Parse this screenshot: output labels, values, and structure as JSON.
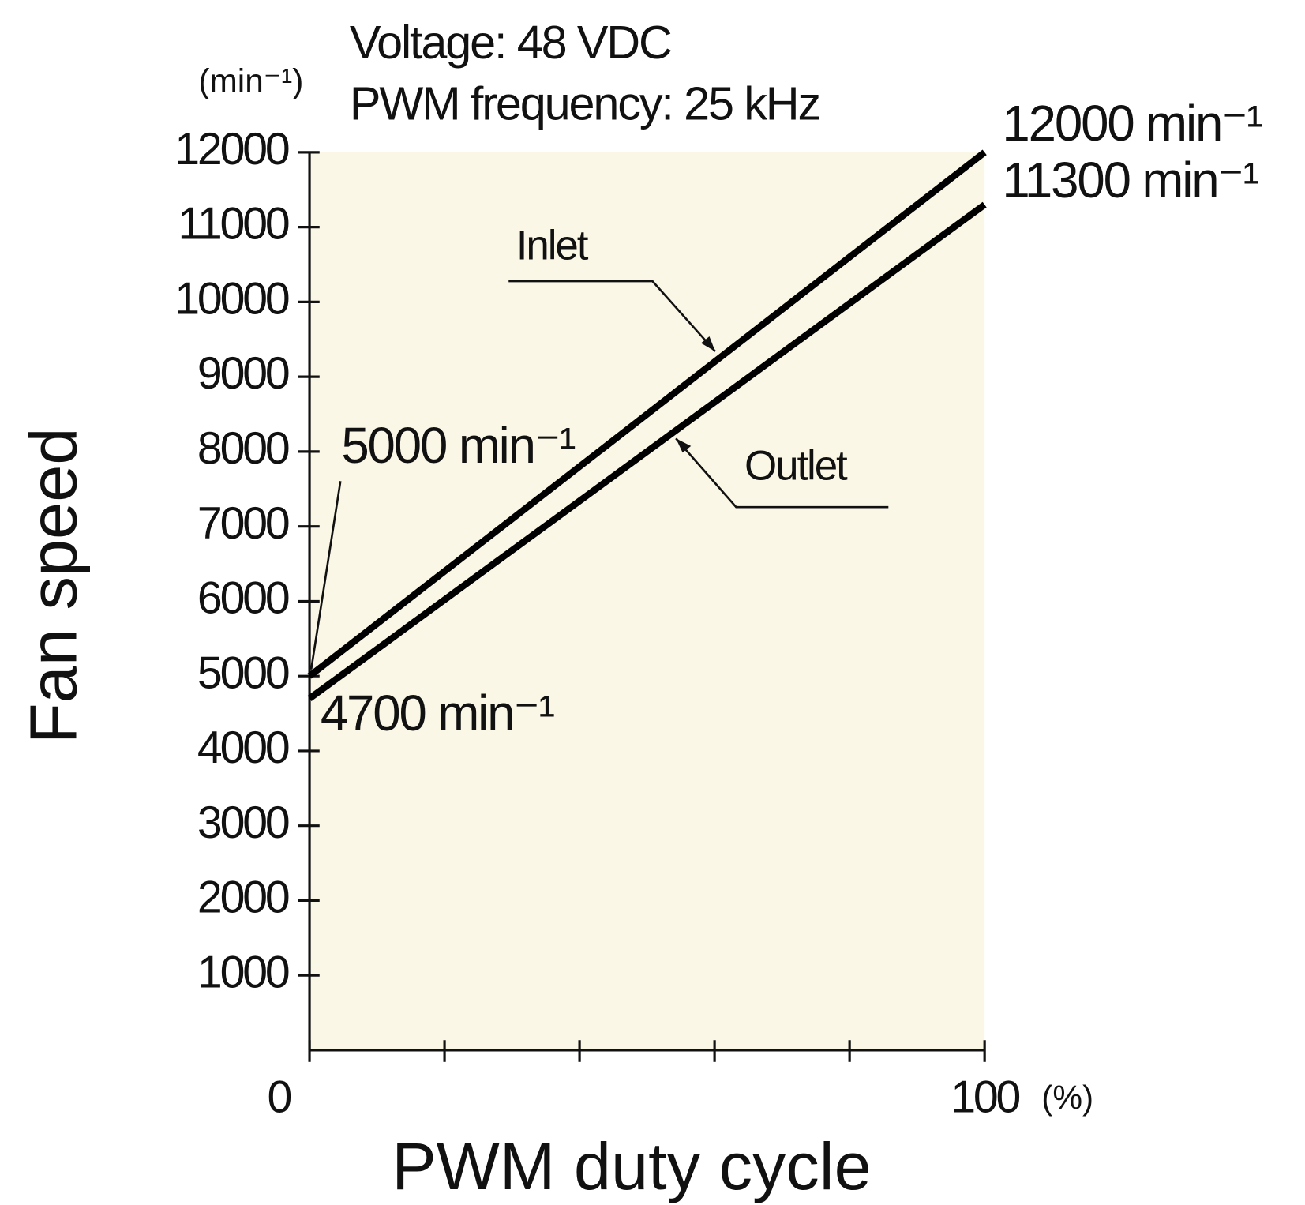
{
  "chart_data": {
    "type": "line",
    "unit_label": "(min⁻¹)",
    "conditions": [
      "Voltage: 48 VDC",
      "PWM frequency: 25 kHz"
    ],
    "xlabel": "PWM duty cycle",
    "ylabel": "Fan speed",
    "x_unit": "(%)",
    "x": [
      0,
      100
    ],
    "series": [
      {
        "name": "Inlet",
        "color": "#000000",
        "values": [
          5000,
          12000
        ],
        "value_labels": [
          "5000 min⁻¹",
          "12000 min⁻¹"
        ]
      },
      {
        "name": "Outlet",
        "color": "#000000",
        "values": [
          4700,
          11300
        ],
        "value_labels": [
          "4700 min⁻¹",
          "11300 min⁻¹"
        ]
      }
    ],
    "xlim": [
      0,
      100
    ],
    "xticks": [
      0,
      100
    ],
    "minor_xticks": [
      20,
      40,
      60,
      80
    ],
    "ylim": [
      0,
      12000
    ],
    "yticks": [
      1000,
      2000,
      3000,
      4000,
      5000,
      6000,
      7000,
      8000,
      9000,
      10000,
      11000,
      12000
    ],
    "plot_background": "#faf7e6"
  }
}
